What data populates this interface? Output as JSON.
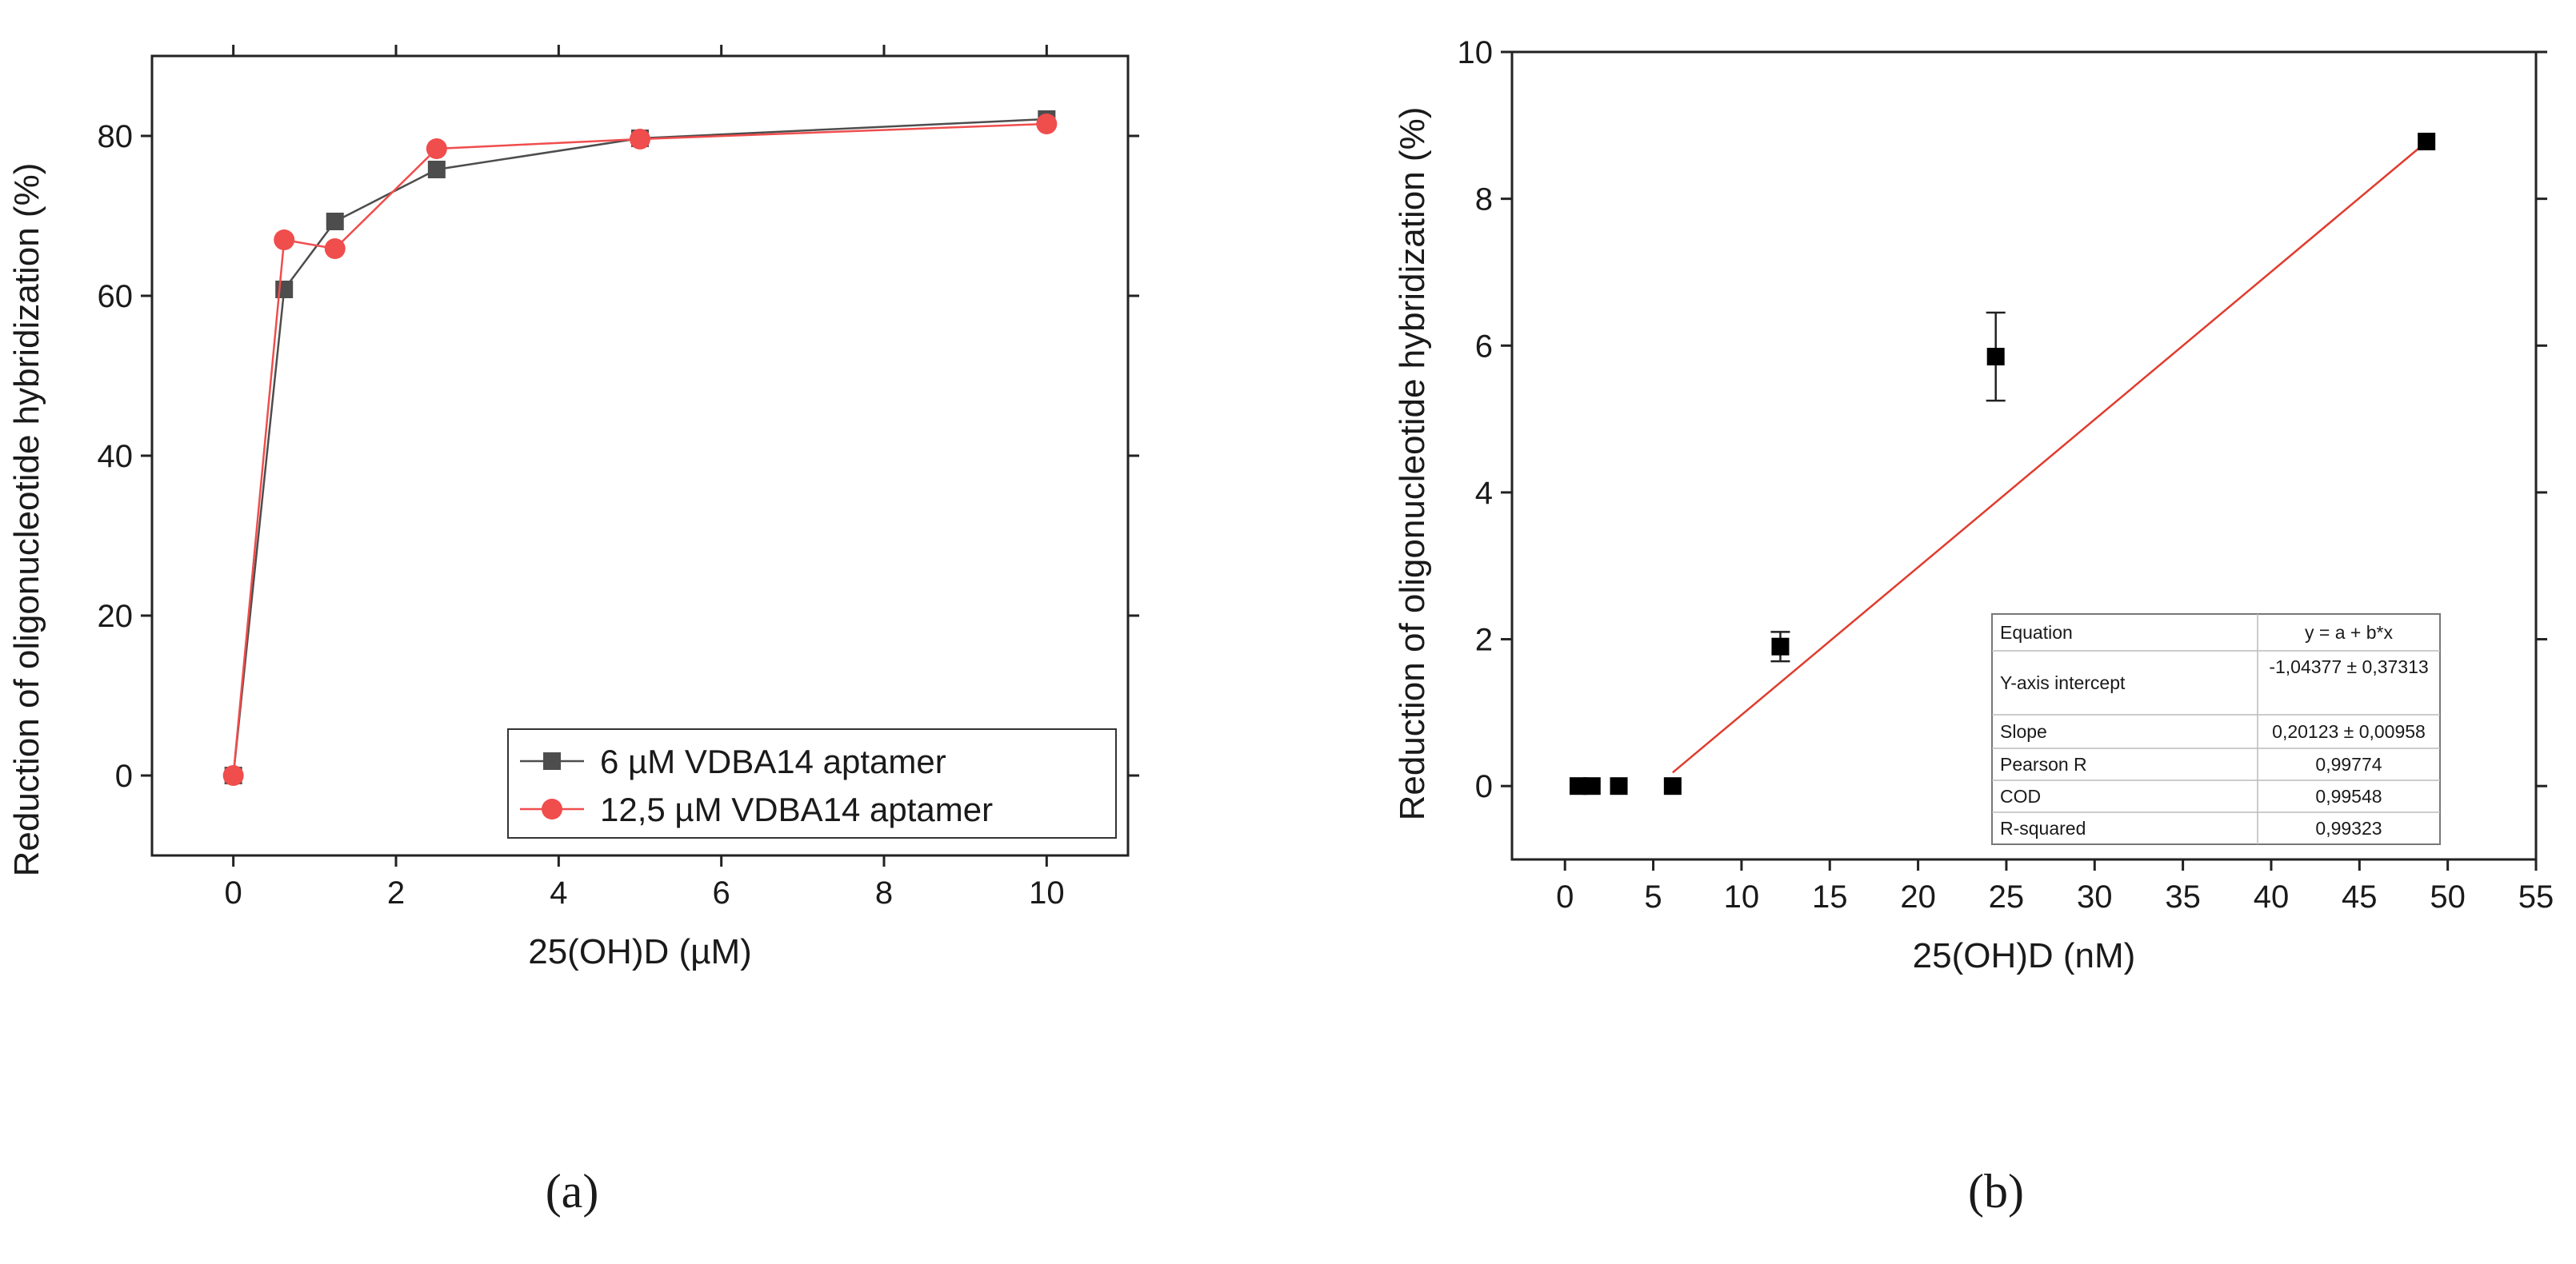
{
  "panel_labels": {
    "a": "(a)",
    "b": "(b)"
  },
  "chart_data": [
    {
      "id": "a",
      "type": "line",
      "title": "",
      "xlabel": "25(OH)D (µM)",
      "ylabel": "Reduction of oligonucleotide hybridization (%)",
      "xlim": [
        -1,
        11
      ],
      "ylim": [
        -10,
        90
      ],
      "xticks": [
        0,
        2,
        4,
        6,
        8,
        10
      ],
      "yticks": [
        0,
        20,
        40,
        60,
        80
      ],
      "grid": false,
      "legend": "bottom-right",
      "series": [
        {
          "name": "6 µM VDBA14 aptamer",
          "color": "#4d4d4d",
          "marker": "square",
          "x": [
            0,
            0.625,
            1.25,
            2.5,
            5,
            10
          ],
          "y": [
            0,
            60.8,
            69.3,
            75.8,
            79.7,
            82.1
          ]
        },
        {
          "name": "12,5 µM VDBA14 aptamer",
          "color": "#f04d4d",
          "marker": "circle",
          "x": [
            0,
            0.625,
            1.25,
            2.5,
            5,
            10
          ],
          "y": [
            0,
            67.0,
            65.9,
            78.4,
            79.6,
            81.5
          ]
        }
      ]
    },
    {
      "id": "b",
      "type": "scatter",
      "title": "",
      "xlabel": "25(OH)D (nM)",
      "ylabel": "Reduction of oligonucleotide hybridization (%)",
      "xlim": [
        -3,
        55
      ],
      "ylim": [
        -1,
        10
      ],
      "xticks": [
        0,
        5,
        10,
        15,
        20,
        25,
        30,
        35,
        40,
        45,
        50,
        55
      ],
      "yticks": [
        0,
        2,
        4,
        6,
        8,
        10
      ],
      "grid": false,
      "points": {
        "color": "#000000",
        "marker": "square",
        "x": [
          0.76,
          1.52,
          3.05,
          6.1,
          12.2,
          24.4,
          48.8
        ],
        "y": [
          0,
          0,
          0,
          0,
          1.9,
          5.85,
          8.78
        ],
        "yerr": [
          0,
          0,
          0,
          0,
          0.2,
          0.6,
          0
        ]
      },
      "fit_line": {
        "color": "#e03c2d",
        "x": [
          6.1,
          48.8
        ],
        "a": -1.04377,
        "b": 0.20123
      },
      "regression_table": {
        "placement": "bottom-right",
        "rows": [
          [
            "Equation",
            "y = a + b*x"
          ],
          [
            "Y-axis intercept",
            "-1,04377 ± 0,37313"
          ],
          [
            "Slope",
            "0,20123 ± 0,00958"
          ],
          [
            "Pearson R",
            "0,99774"
          ],
          [
            "COD",
            "0,99548"
          ],
          [
            "R-squared",
            "0,99323"
          ]
        ]
      }
    }
  ]
}
